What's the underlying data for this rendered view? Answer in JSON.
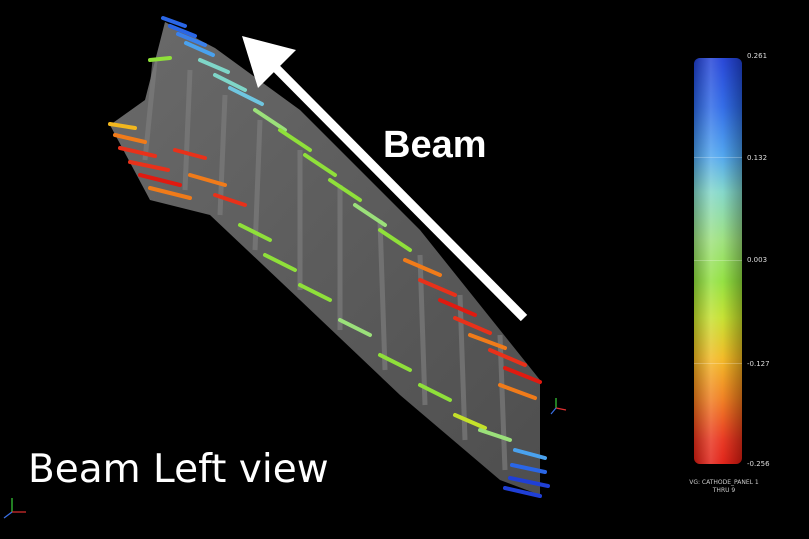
{
  "labels": {
    "beam": "Beam",
    "view": "Beam Left view"
  },
  "colorbar": {
    "ticks": [
      "0.261",
      "0.132",
      "0.003",
      "-0.127",
      "-0.256"
    ],
    "caption_line1": "VG: CATHODE_PANEL 1",
    "caption_line2": "THRU 9"
  },
  "colors": {
    "background": "#000000",
    "panel": "#5a5a5a",
    "high": "#1f3fd6",
    "mid": "#8fe03a",
    "low": "#e01a10"
  }
}
